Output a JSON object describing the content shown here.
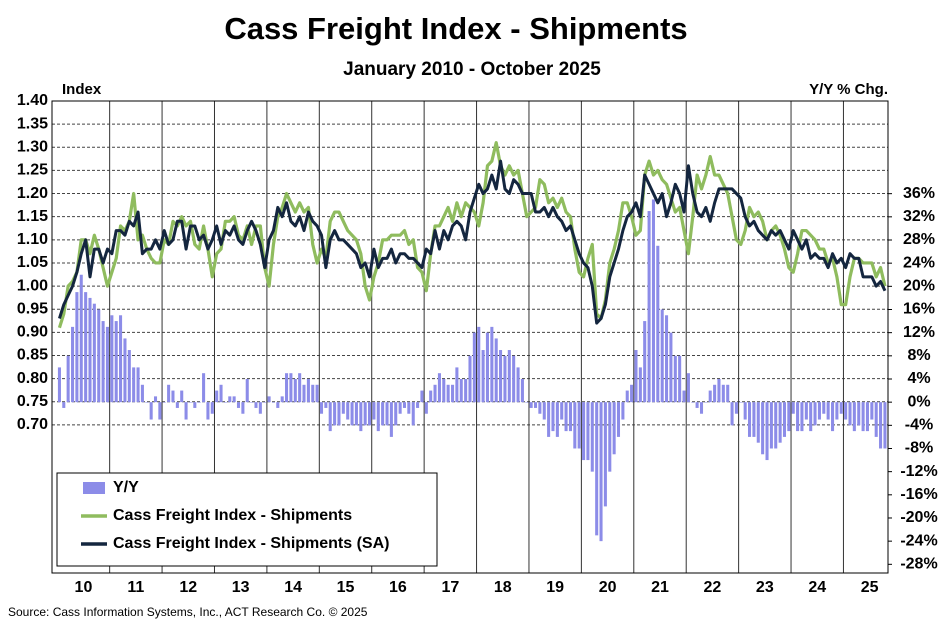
{
  "chart_data": {
    "type": "combo",
    "title": "Cass Freight Index - Shipments",
    "subtitle": "January 2010 - October 2025",
    "y_label": "Index",
    "y2_label": "Y/Y % Chg.",
    "source": "Source:  Cass Information  Systems, Inc., ACT Research Co. © 2025",
    "legend": "bottom-left",
    "grid": true,
    "xlim": [
      9.9,
      25.85
    ],
    "xticks": [
      {
        "value": 10.5,
        "label": "10"
      },
      {
        "value": 11.5,
        "label": "11"
      },
      {
        "value": 12.5,
        "label": "12"
      },
      {
        "value": 13.5,
        "label": "13"
      },
      {
        "value": 14.5,
        "label": "14"
      },
      {
        "value": 15.5,
        "label": "15"
      },
      {
        "value": 16.5,
        "label": "16"
      },
      {
        "value": 17.5,
        "label": "17"
      },
      {
        "value": 18.5,
        "label": "18"
      },
      {
        "value": 19.5,
        "label": "19"
      },
      {
        "value": 20.5,
        "label": "20"
      },
      {
        "value": 21.5,
        "label": "21"
      },
      {
        "value": 22.5,
        "label": "22"
      },
      {
        "value": 23.5,
        "label": "23"
      },
      {
        "value": 24.5,
        "label": "24"
      },
      {
        "value": 25.5,
        "label": "25"
      }
    ],
    "ylim": [
      0.38,
      1.4
    ],
    "yticks": [
      {
        "value": 1.4,
        "label": "1.40"
      },
      1.35,
      {
        "value": 1.3,
        "label": "1.30"
      },
      1.25,
      {
        "value": 1.2,
        "label": "1.20"
      },
      1.15,
      {
        "value": 1.1,
        "label": "1.10"
      },
      1.05,
      {
        "value": 1.0,
        "label": "1.00"
      },
      0.95,
      {
        "value": 0.9,
        "label": "0.90"
      },
      0.85,
      {
        "value": 0.8,
        "label": "0.80"
      },
      0.75,
      {
        "value": 0.7,
        "label": "0.70"
      }
    ],
    "y2lim": [
      -29.5,
      52
    ],
    "y2ticks": [
      {
        "value": 36,
        "label": "36%"
      },
      {
        "value": 32,
        "label": "32%"
      },
      {
        "value": 28,
        "label": "28%"
      },
      {
        "value": 24,
        "label": "24%"
      },
      {
        "value": 20,
        "label": "20%"
      },
      {
        "value": 16,
        "label": "16%"
      },
      {
        "value": 12,
        "label": "12%"
      },
      {
        "value": 8,
        "label": "8%"
      },
      {
        "value": 4,
        "label": "4%"
      },
      {
        "value": 0,
        "label": "0%"
      },
      {
        "value": -4,
        "label": "-4%"
      },
      {
        "value": -8,
        "label": "-8%"
      },
      {
        "value": -12,
        "label": "-12%"
      },
      {
        "value": -16,
        "label": "-16%"
      },
      {
        "value": -20,
        "label": "-20%"
      },
      {
        "value": -24,
        "label": "-24%"
      },
      {
        "value": -28,
        "label": "-28%"
      }
    ],
    "x": [
      10.042,
      10.125,
      10.208,
      10.292,
      10.375,
      10.458,
      10.542,
      10.625,
      10.708,
      10.792,
      10.875,
      10.958,
      11.042,
      11.125,
      11.208,
      11.292,
      11.375,
      11.458,
      11.542,
      11.625,
      11.708,
      11.792,
      11.875,
      11.958,
      12.042,
      12.125,
      12.208,
      12.292,
      12.375,
      12.458,
      12.542,
      12.625,
      12.708,
      12.792,
      12.875,
      12.958,
      13.042,
      13.125,
      13.208,
      13.292,
      13.375,
      13.458,
      13.542,
      13.625,
      13.708,
      13.792,
      13.875,
      13.958,
      14.042,
      14.125,
      14.208,
      14.292,
      14.375,
      14.458,
      14.542,
      14.625,
      14.708,
      14.792,
      14.875,
      14.958,
      15.042,
      15.125,
      15.208,
      15.292,
      15.375,
      15.458,
      15.542,
      15.625,
      15.708,
      15.792,
      15.875,
      15.958,
      16.042,
      16.125,
      16.208,
      16.292,
      16.375,
      16.458,
      16.542,
      16.625,
      16.708,
      16.792,
      16.875,
      16.958,
      17.042,
      17.125,
      17.208,
      17.292,
      17.375,
      17.458,
      17.542,
      17.625,
      17.708,
      17.792,
      17.875,
      17.958,
      18.042,
      18.125,
      18.208,
      18.292,
      18.375,
      18.458,
      18.542,
      18.625,
      18.708,
      18.792,
      18.875,
      18.958,
      19.042,
      19.125,
      19.208,
      19.292,
      19.375,
      19.458,
      19.542,
      19.625,
      19.708,
      19.792,
      19.875,
      19.958,
      20.042,
      20.125,
      20.208,
      20.292,
      20.375,
      20.458,
      20.542,
      20.625,
      20.708,
      20.792,
      20.875,
      20.958,
      21.042,
      21.125,
      21.208,
      21.292,
      21.375,
      21.458,
      21.542,
      21.625,
      21.708,
      21.792,
      21.875,
      21.958,
      22.042,
      22.125,
      22.208,
      22.292,
      22.375,
      22.458,
      22.542,
      22.625,
      22.708,
      22.792,
      22.875,
      22.958,
      23.042,
      23.125,
      23.208,
      23.292,
      23.375,
      23.458,
      23.542,
      23.625,
      23.708,
      23.792,
      23.875,
      23.958,
      24.042,
      24.125,
      24.208,
      24.292,
      24.375,
      24.458,
      24.542,
      24.625,
      24.708,
      24.792,
      24.875,
      24.958,
      25.042,
      25.125,
      25.208,
      25.292,
      25.375,
      25.458,
      25.542,
      25.625,
      25.708,
      25.792
    ],
    "series": [
      {
        "name": "Y/Y",
        "type": "bar",
        "axis": "y2",
        "color": "#8c8ce8",
        "values": [
          6,
          -1,
          8,
          13,
          19,
          22,
          19,
          18,
          17,
          16,
          14,
          13,
          15,
          14,
          15,
          11,
          9,
          6,
          6,
          3,
          0,
          -3,
          1,
          -3,
          0,
          3,
          2,
          -1,
          2,
          -3,
          0,
          -1,
          0,
          5,
          -3,
          -2,
          2,
          3,
          0,
          1,
          1,
          -1,
          -2,
          4,
          0,
          -1,
          -2,
          0,
          1,
          0,
          -1,
          1,
          5,
          5,
          4,
          5,
          3,
          4,
          3,
          3,
          -2,
          -1,
          -5,
          -4,
          -4,
          -2,
          -3,
          -4,
          -4,
          -5,
          -4,
          -4,
          -3,
          -5,
          -4,
          -4,
          -6,
          -4,
          -2,
          -1,
          -2,
          -4,
          -1,
          2,
          -2,
          2,
          3,
          5,
          4,
          3,
          3,
          6,
          4,
          4,
          8,
          12,
          13,
          9,
          12,
          13,
          11,
          9,
          8,
          9,
          8,
          6,
          4,
          0,
          -1,
          -1,
          -2,
          -3,
          -6,
          -5,
          -6,
          -3,
          -5,
          -5,
          -8,
          -8,
          -10,
          -10,
          -12,
          -23,
          -24,
          -18,
          -12,
          -9,
          -6,
          -3,
          2,
          3,
          9,
          6,
          14,
          33,
          35,
          27,
          16,
          15,
          12,
          8,
          8,
          2,
          5,
          0,
          -1,
          -2,
          0,
          2,
          3,
          4,
          3,
          3,
          -4,
          -2,
          0,
          -3,
          -6,
          -6,
          -7,
          -9,
          -10,
          -8,
          -8,
          -7,
          -6,
          -5,
          -2,
          -5,
          -5,
          -3,
          -5,
          -4,
          -3,
          -2,
          -3,
          -5,
          -3,
          -2,
          -3,
          -4,
          -5,
          -4,
          -5,
          -5,
          -3,
          -6,
          -8,
          -8
        ]
      },
      {
        "name": "Cass Freight Index - Shipments",
        "type": "line",
        "color": "#8fbc5e",
        "values": [
          0.91,
          0.94,
          1.0,
          1.01,
          1.03,
          1.1,
          1.1,
          1.07,
          1.11,
          1.08,
          1.04,
          1.0,
          1.03,
          1.06,
          1.13,
          1.12,
          1.14,
          1.2,
          1.1,
          1.11,
          1.08,
          1.06,
          1.05,
          1.05,
          1.1,
          1.09,
          1.14,
          1.13,
          1.15,
          1.13,
          1.14,
          1.09,
          1.08,
          1.13,
          1.08,
          1.02,
          1.07,
          1.08,
          1.14,
          1.14,
          1.15,
          1.11,
          1.1,
          1.13,
          1.09,
          1.13,
          1.13,
          1.04,
          1.0,
          1.09,
          1.15,
          1.17,
          1.2,
          1.18,
          1.16,
          1.18,
          1.16,
          1.17,
          1.09,
          1.05,
          1.08,
          1.06,
          1.14,
          1.16,
          1.16,
          1.14,
          1.12,
          1.11,
          1.1,
          1.07,
          1.0,
          0.97,
          1.02,
          1.05,
          1.1,
          1.1,
          1.11,
          1.11,
          1.11,
          1.12,
          1.09,
          1.1,
          1.04,
          1.03,
          0.99,
          1.07,
          1.13,
          1.13,
          1.15,
          1.17,
          1.14,
          1.18,
          1.15,
          1.18,
          1.17,
          1.16,
          1.13,
          1.18,
          1.26,
          1.27,
          1.31,
          1.26,
          1.24,
          1.26,
          1.24,
          1.25,
          1.2,
          1.15,
          1.16,
          1.17,
          1.23,
          1.22,
          1.18,
          1.19,
          1.17,
          1.19,
          1.16,
          1.15,
          1.08,
          1.03,
          1.02,
          1.06,
          1.09,
          0.94,
          0.93,
          0.97,
          1.05,
          1.08,
          1.12,
          1.18,
          1.18,
          1.15,
          1.11,
          1.12,
          1.24,
          1.27,
          1.24,
          1.25,
          1.23,
          1.22,
          1.19,
          1.16,
          1.17,
          1.12,
          1.07,
          1.15,
          1.24,
          1.21,
          1.24,
          1.28,
          1.24,
          1.24,
          1.22,
          1.2,
          1.15,
          1.1,
          1.09,
          1.12,
          1.17,
          1.15,
          1.16,
          1.14,
          1.1,
          1.12,
          1.13,
          1.11,
          1.08,
          1.04,
          1.03,
          1.07,
          1.12,
          1.12,
          1.11,
          1.1,
          1.08,
          1.08,
          1.05,
          1.06,
          1.02,
          0.96,
          0.96,
          1.02,
          1.06,
          1.06,
          1.05,
          1.05,
          1.05,
          1.02,
          1.04,
          1.0
        ]
      },
      {
        "name": "Cass Freight Index - Shipments (SA)",
        "type": "line",
        "color": "#14263f",
        "values": [
          0.93,
          0.96,
          0.98,
          1.0,
          1.03,
          1.07,
          1.1,
          1.02,
          1.08,
          1.08,
          1.05,
          1.08,
          1.07,
          1.12,
          1.12,
          1.11,
          1.14,
          1.13,
          1.16,
          1.07,
          1.08,
          1.08,
          1.1,
          1.08,
          1.12,
          1.09,
          1.1,
          1.14,
          1.14,
          1.08,
          1.13,
          1.13,
          1.1,
          1.11,
          1.08,
          1.1,
          1.13,
          1.09,
          1.12,
          1.11,
          1.13,
          1.1,
          1.09,
          1.12,
          1.14,
          1.12,
          1.09,
          1.04,
          1.1,
          1.12,
          1.17,
          1.15,
          1.18,
          1.14,
          1.13,
          1.15,
          1.12,
          1.16,
          1.14,
          1.13,
          1.11,
          1.04,
          1.1,
          1.12,
          1.1,
          1.1,
          1.09,
          1.08,
          1.07,
          1.04,
          1.05,
          1.02,
          1.08,
          1.04,
          1.06,
          1.06,
          1.08,
          1.05,
          1.07,
          1.07,
          1.06,
          1.06,
          1.05,
          1.04,
          1.08,
          1.07,
          1.12,
          1.08,
          1.12,
          1.1,
          1.13,
          1.14,
          1.13,
          1.1,
          1.16,
          1.19,
          1.22,
          1.2,
          1.21,
          1.24,
          1.21,
          1.27,
          1.21,
          1.2,
          1.23,
          1.22,
          1.2,
          1.2,
          1.2,
          1.16,
          1.16,
          1.17,
          1.15,
          1.17,
          1.15,
          1.14,
          1.12,
          1.13,
          1.1,
          1.07,
          1.05,
          1.04,
          1.0,
          0.92,
          0.93,
          0.96,
          1.02,
          1.05,
          1.08,
          1.12,
          1.15,
          1.16,
          1.18,
          1.15,
          1.24,
          1.22,
          1.2,
          1.18,
          1.2,
          1.15,
          1.18,
          1.22,
          1.2,
          1.16,
          1.26,
          1.2,
          1.16,
          1.15,
          1.17,
          1.14,
          1.18,
          1.21,
          1.21,
          1.21,
          1.21,
          1.2,
          1.19,
          1.15,
          1.13,
          1.14,
          1.12,
          1.11,
          1.1,
          1.12,
          1.11,
          1.12,
          1.1,
          1.08,
          1.12,
          1.1,
          1.08,
          1.1,
          1.06,
          1.07,
          1.06,
          1.06,
          1.04,
          1.07,
          1.05,
          1.06,
          1.04,
          1.07,
          1.06,
          1.06,
          1.02,
          1.02,
          1.02,
          1.0,
          1.01,
          0.99
        ]
      }
    ]
  }
}
